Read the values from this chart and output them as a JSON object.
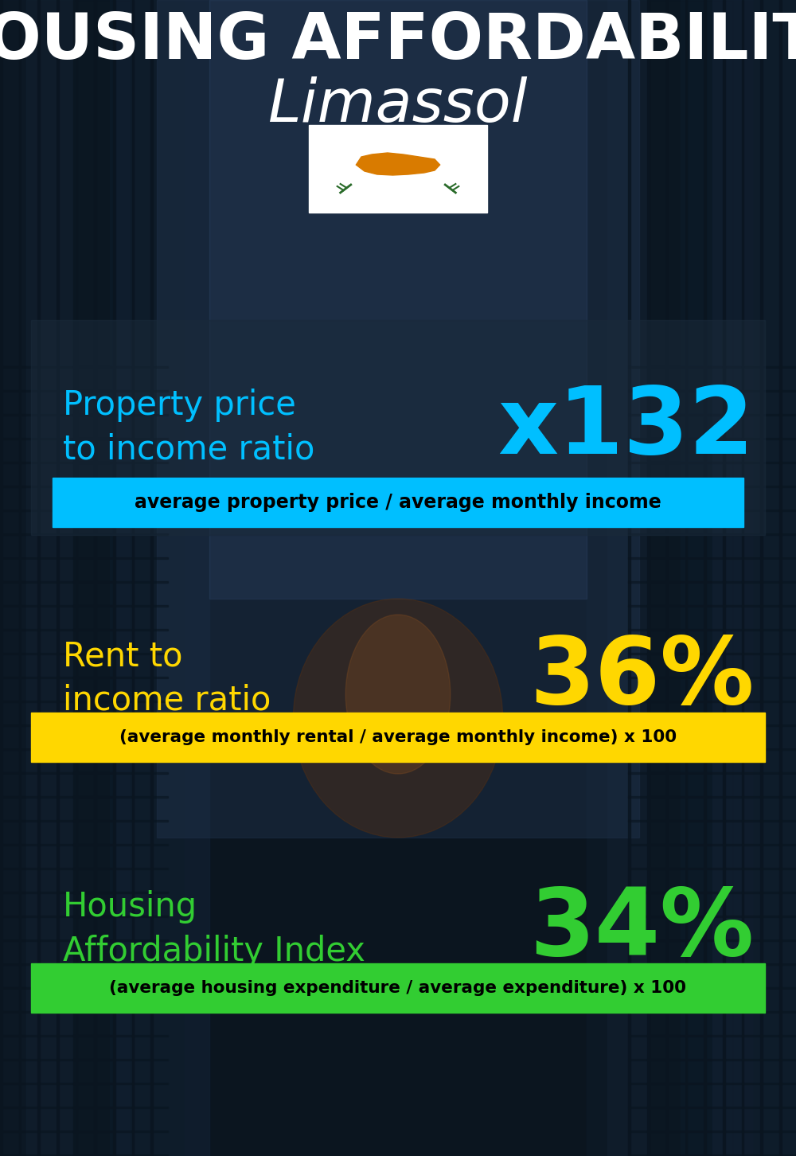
{
  "title_line1": "HOUSING AFFORDABILITY",
  "title_line2": "Limassol",
  "bg_color": "#0a1520",
  "title_color": "#ffffff",
  "subtitle_color": "#ffffff",
  "section1_label": "Property price\nto income ratio",
  "section1_value": "x132",
  "section1_label_color": "#00bfff",
  "section1_value_color": "#00bfff",
  "section1_formula": "average property price / average monthly income",
  "section1_formula_bg": "#00bfff",
  "section1_formula_color": "#000000",
  "section2_label": "Rent to\nincome ratio",
  "section2_value": "36%",
  "section2_label_color": "#ffd700",
  "section2_value_color": "#ffd700",
  "section2_formula": "(average monthly rental / average monthly income) x 100",
  "section2_formula_bg": "#ffd700",
  "section2_formula_color": "#000000",
  "section3_label": "Housing\nAffordability Index",
  "section3_value": "34%",
  "section3_label_color": "#32cd32",
  "section3_value_color": "#32cd32",
  "section3_formula": "(average housing expenditure / average expenditure) x 100",
  "section3_formula_bg": "#32cd32",
  "section3_formula_color": "#000000",
  "flag_white": "#ffffff",
  "flag_orange": "#d97b00",
  "flag_green": "#2a6b2a",
  "panel1_color": "#1a2a3a",
  "panel1_alpha": 0.55
}
